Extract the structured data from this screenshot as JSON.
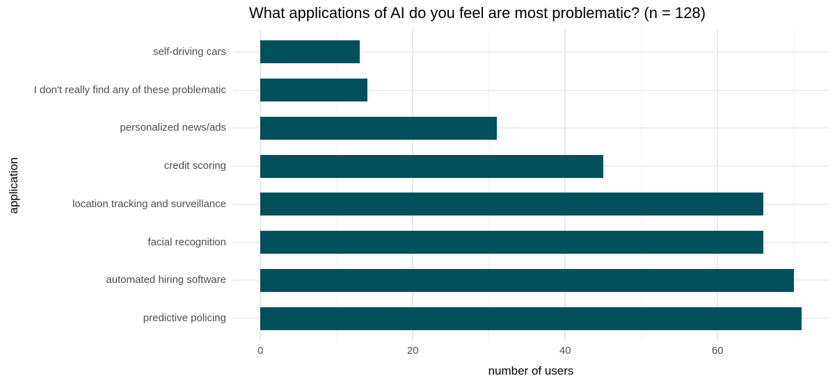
{
  "chart_data": {
    "type": "bar",
    "orientation": "horizontal",
    "title": "What applications of AI do you feel are most problematic? (n = 128)",
    "xlabel": "number of users",
    "ylabel": "application",
    "sample_size": 128,
    "categories": [
      "self-driving cars",
      "I don't really find any of these problematic",
      "personalized news/ads",
      "credit scoring",
      "location tracking and surveillance",
      "facial recognition",
      "automated hiring software",
      "predictive policing"
    ],
    "values": [
      13,
      14,
      31,
      45,
      66,
      66,
      70,
      71
    ],
    "x_ticks": [
      0,
      20,
      40,
      60
    ],
    "x_minor_gridlines": [
      10,
      30,
      50,
      70
    ],
    "xlim": [
      -3.6,
      74.6
    ],
    "grid": "on",
    "legend": "none",
    "bar_color": "#02505c",
    "grid_major_color": "#e9e9e9",
    "grid_minor_color": "#f3f3f3",
    "axis_text_color": "#4d4d4d",
    "title_color": "#000000"
  }
}
